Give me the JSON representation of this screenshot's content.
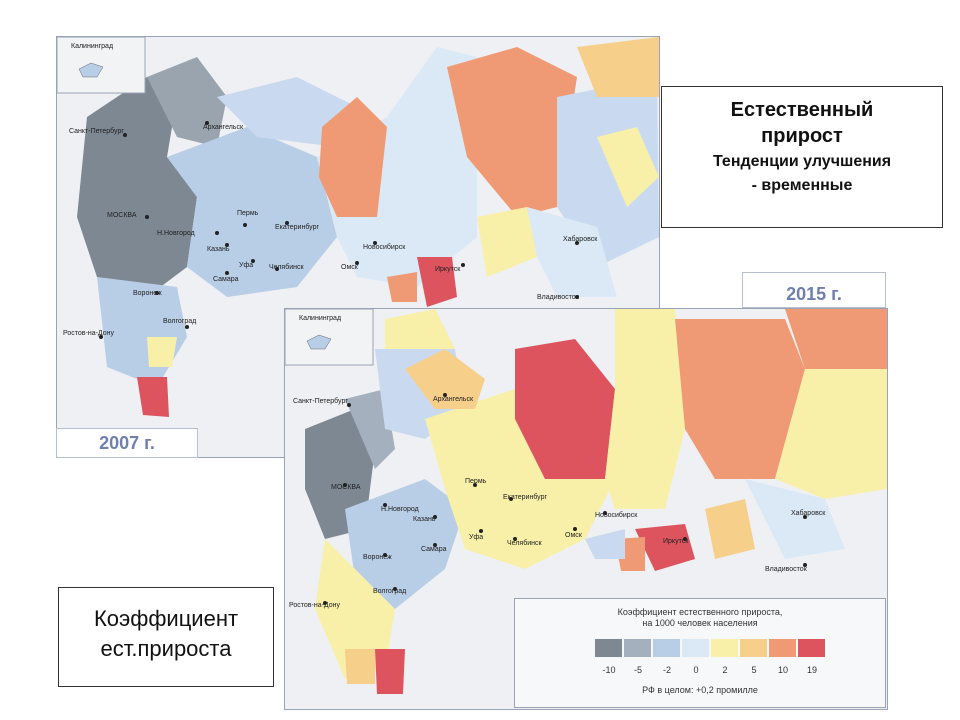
{
  "title": {
    "line1": "Естественный",
    "line2": "прирост",
    "line3": "Тенденции улучшения",
    "line4": "- временные"
  },
  "coef": {
    "line1": "Коэффициент",
    "line2": "ест.прироста"
  },
  "maps": {
    "m2007": {
      "year": "2007 г.",
      "inset_label": "Калининград",
      "cities": [
        "Санкт-Петербург",
        "Архангельск",
        "МОСКВА",
        "Н.Новгород",
        "Пермь",
        "Екатеринбург",
        "Казань",
        "Уфа",
        "Самара",
        "Челябинск",
        "Омск",
        "Новосибирск",
        "Иркутск",
        "Воронеж",
        "Волгоград",
        "Ростов-на-Дону",
        "Хабаровск",
        "Владивосток"
      ]
    },
    "m2015": {
      "year": "2015 г.",
      "inset_label": "Калининград",
      "cities": [
        "Санкт-Петербург",
        "Архангельск",
        "МОСКВА",
        "Н.Новгород",
        "Пермь",
        "Екатеринбург",
        "Казань",
        "Уфа",
        "Самара",
        "Челябинск",
        "Омск",
        "Новосибирск",
        "Иркутск",
        "Воронеж",
        "Волгоград",
        "Ростов-на-Дону",
        "Хабаровск",
        "Владивосток"
      ]
    }
  },
  "legend": {
    "title1": "Коэффициент естественного прироста,",
    "title2": "на 1000 человек населения",
    "footer": "РФ в целом: +0,2 промилле",
    "ticks": [
      "-10",
      "-5",
      "-2",
      "0",
      "2",
      "5",
      "10",
      "19"
    ],
    "colors": [
      "#7d8893",
      "#a4b0bd",
      "#b8cde6",
      "#dbe9f6",
      "#f8f0a8",
      "#f6cf8a",
      "#ef9a74",
      "#dd545e"
    ]
  }
}
